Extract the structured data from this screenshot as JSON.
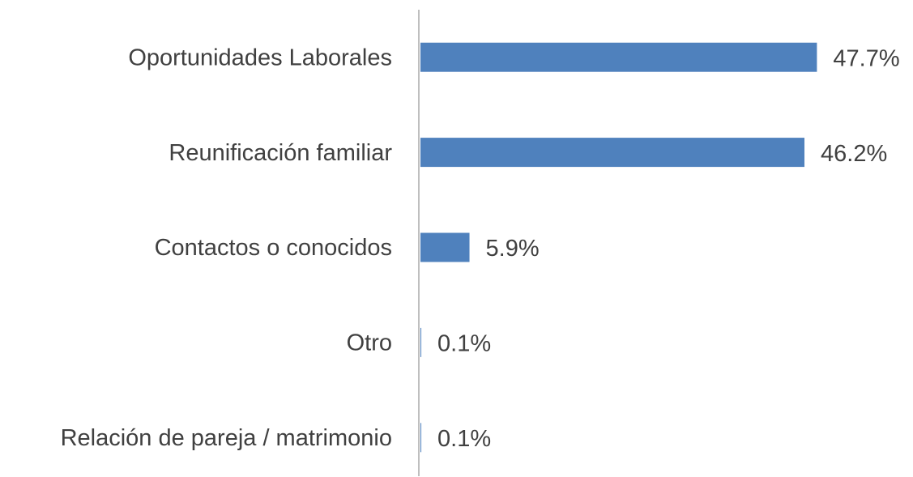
{
  "chart_data": {
    "type": "bar",
    "orientation": "horizontal",
    "categories": [
      "Oportunidades Laborales",
      "Reunificación familiar",
      "Contactos o conocidos",
      "Otro",
      "Relación de pareja / matrimonio"
    ],
    "values": [
      47.7,
      46.2,
      5.9,
      0.1,
      0.1
    ],
    "value_labels": [
      "47.7%",
      "46.2%",
      "5.9%",
      "0.1%",
      "0.1%"
    ],
    "color": "#4f81bd",
    "xlim": [
      0,
      50
    ]
  }
}
